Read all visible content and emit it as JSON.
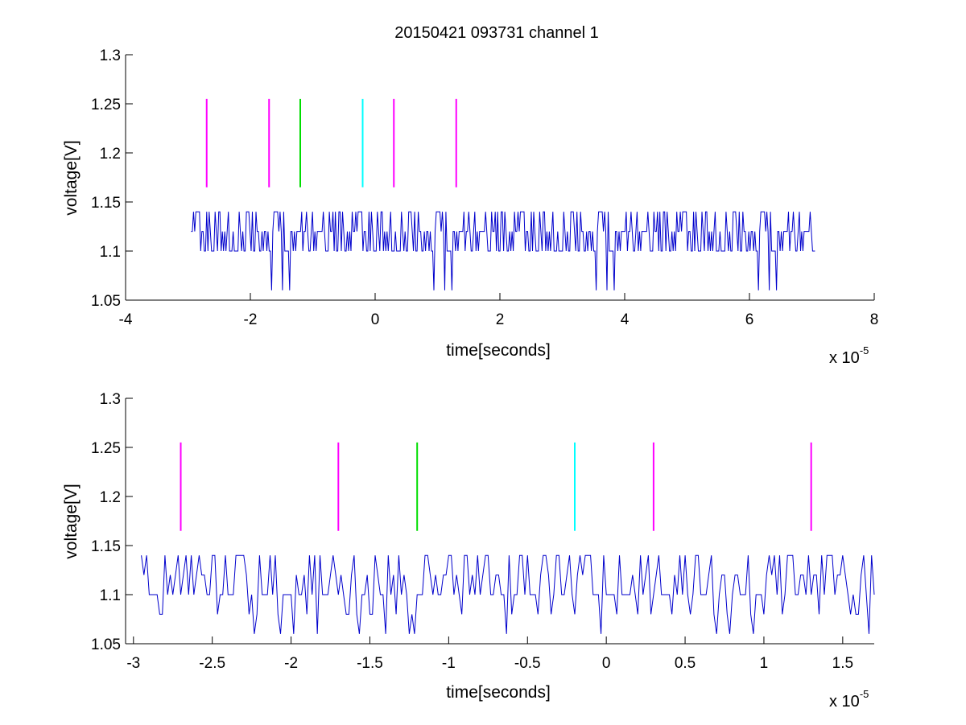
{
  "chart_data": [
    {
      "type": "line",
      "title": "20150421 093731 channel 1",
      "xlabel": "time[seconds]",
      "ylabel": "voltage[V]",
      "x_multiplier": "x 10",
      "x_exponent": "-5",
      "xlim": [
        -4,
        8
      ],
      "ylim": [
        1.05,
        1.3
      ],
      "xticks": [
        -4,
        -2,
        0,
        2,
        4,
        6,
        8
      ],
      "xtick_labels": [
        "-4",
        "-2",
        "0",
        "2",
        "4",
        "6",
        "8"
      ],
      "yticks": [
        1.05,
        1.1,
        1.15,
        1.2,
        1.25,
        1.3
      ],
      "ytick_labels": [
        "1.05",
        "1.1",
        "1.15",
        "1.2",
        "1.25",
        "1.3"
      ],
      "grid": false,
      "markers": [
        {
          "x": -2.7,
          "y": [
            1.165,
            1.255
          ],
          "color": "#ff00ff"
        },
        {
          "x": -1.7,
          "y": [
            1.165,
            1.255
          ],
          "color": "#ff00ff"
        },
        {
          "x": -1.2,
          "y": [
            1.165,
            1.255
          ],
          "color": "#00dd00"
        },
        {
          "x": -0.2,
          "y": [
            1.165,
            1.255
          ],
          "color": "#00ffff"
        },
        {
          "x": 0.3,
          "y": [
            1.165,
            1.255
          ],
          "color": "#ff00ff"
        },
        {
          "x": 1.3,
          "y": [
            1.165,
            1.255
          ],
          "color": "#ff00ff"
        }
      ],
      "series": [
        {
          "color": "#0000cc",
          "x_range": [
            -2.95,
            7.05
          ],
          "levels": [
            1.06,
            1.1,
            1.12,
            1.14
          ],
          "pattern": [
            2,
            1,
            3,
            1,
            2,
            3,
            1,
            2,
            1,
            3,
            2,
            1,
            1,
            2,
            3,
            2,
            1,
            0,
            1,
            2,
            3,
            1,
            2,
            3,
            3,
            2,
            1,
            2,
            1,
            3,
            2,
            2,
            1,
            3,
            1,
            2,
            3,
            2,
            1,
            1,
            2,
            0,
            1,
            2,
            3,
            2,
            1,
            3,
            2,
            1,
            2,
            3,
            1,
            2,
            1,
            3,
            3,
            2,
            1,
            2,
            1,
            0,
            1,
            3,
            2,
            1,
            2,
            3,
            2,
            1,
            3,
            1,
            2,
            2,
            3,
            1,
            2,
            1,
            3,
            2,
            1,
            2,
            3,
            1,
            1,
            2,
            3,
            2,
            1,
            2
          ]
        }
      ]
    },
    {
      "type": "line",
      "xlabel": "time[seconds]",
      "ylabel": "voltage[V]",
      "x_multiplier": "x 10",
      "x_exponent": "-5",
      "xlim": [
        -3.05,
        1.7
      ],
      "ylim": [
        1.05,
        1.3
      ],
      "xticks": [
        -3,
        -2.5,
        -2,
        -1.5,
        -1,
        -0.5,
        0,
        0.5,
        1,
        1.5
      ],
      "xtick_labels": [
        "-3",
        "-2.5",
        "-2",
        "-1.5",
        "-1",
        "-0.5",
        "0",
        "0.5",
        "1",
        "1.5"
      ],
      "yticks": [
        1.05,
        1.1,
        1.15,
        1.2,
        1.25,
        1.3
      ],
      "ytick_labels": [
        "1.05",
        "1.1",
        "1.15",
        "1.2",
        "1.25",
        "1.3"
      ],
      "grid": false,
      "markers": [
        {
          "x": -2.7,
          "y": [
            1.165,
            1.255
          ],
          "color": "#ff00ff"
        },
        {
          "x": -1.7,
          "y": [
            1.165,
            1.255
          ],
          "color": "#ff00ff"
        },
        {
          "x": -1.2,
          "y": [
            1.165,
            1.255
          ],
          "color": "#00dd00"
        },
        {
          "x": -0.2,
          "y": [
            1.165,
            1.255
          ],
          "color": "#00ffff"
        },
        {
          "x": 0.3,
          "y": [
            1.165,
            1.255
          ],
          "color": "#ff00ff"
        },
        {
          "x": 1.3,
          "y": [
            1.165,
            1.255
          ],
          "color": "#ff00ff"
        }
      ],
      "series": [
        {
          "color": "#0000cc",
          "x_range": [
            -2.95,
            1.7
          ],
          "levels": [
            1.06,
            1.08,
            1.1,
            1.12,
            1.14
          ],
          "pattern": [
            4,
            4,
            2,
            3,
            4,
            2,
            2,
            3,
            4,
            2,
            1,
            0,
            2,
            3,
            4,
            2,
            2,
            3,
            4,
            2,
            2,
            1,
            2,
            3,
            4,
            2,
            2,
            1,
            0,
            2,
            3,
            4,
            3,
            2,
            2,
            1,
            2,
            3,
            4,
            4,
            2,
            1,
            0,
            2,
            2,
            3,
            4,
            2,
            3,
            4,
            2,
            1,
            2,
            3,
            4,
            4,
            2,
            2,
            1,
            0,
            1,
            2,
            3,
            4,
            2,
            3,
            4,
            2,
            2,
            1,
            2,
            3,
            4,
            2,
            1,
            0,
            2,
            3,
            4,
            4,
            3,
            2,
            1,
            0,
            2,
            2,
            3,
            4,
            2,
            3,
            4,
            2,
            1,
            0,
            2,
            3,
            4,
            2,
            2,
            1,
            2,
            3,
            4,
            4,
            2,
            2,
            3,
            4,
            2,
            1,
            2,
            0,
            2,
            3,
            4,
            2,
            2,
            3,
            4,
            4,
            2,
            1,
            2,
            3,
            4,
            2,
            2,
            1,
            0,
            2,
            3,
            4,
            2,
            3,
            4,
            2,
            2,
            3,
            4,
            4,
            2,
            1,
            2,
            2,
            3,
            4,
            2,
            1,
            0,
            2,
            3,
            4,
            2,
            2,
            3,
            4,
            2,
            2,
            1,
            2,
            3,
            4,
            4,
            2,
            2,
            1,
            0,
            2,
            3,
            4,
            2,
            3,
            4,
            2,
            1,
            2,
            3,
            4,
            2,
            2,
            3,
            4,
            4,
            2,
            1,
            0,
            1,
            2,
            3,
            4,
            2,
            2,
            3,
            4,
            2,
            1,
            2,
            3,
            4,
            2,
            2,
            1,
            0,
            2,
            3,
            4,
            4,
            2,
            3,
            4,
            2,
            2,
            1,
            2,
            3,
            4,
            2,
            3,
            4,
            4,
            2,
            2,
            1,
            2,
            3,
            4,
            2,
            2,
            3,
            4,
            2,
            1,
            2,
            3,
            4,
            4,
            2,
            3,
            4,
            2
          ]
        }
      ]
    }
  ]
}
